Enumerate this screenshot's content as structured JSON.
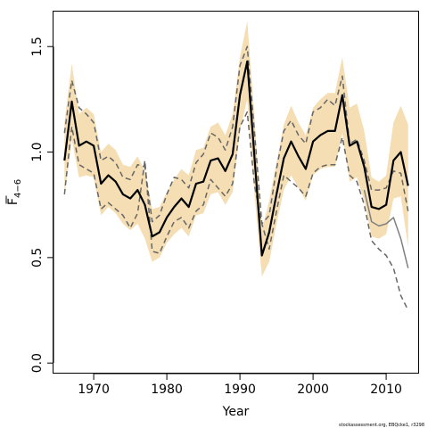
{
  "chart_data": {
    "type": "line",
    "xlabel": "Year",
    "ylabel": {
      "main": "F",
      "subscript": "4−6"
    },
    "xlim": [
      1964.5,
      2014.5
    ],
    "ylim": [
      -0.05,
      1.67
    ],
    "xticks": [
      1970,
      1980,
      1990,
      2000,
      2010
    ],
    "yticks": [
      0.0,
      0.5,
      1.0,
      1.5
    ],
    "ytick_labels": [
      "0.0",
      "0.5",
      "1.0",
      "1.5"
    ],
    "xtick_labels": [
      "1970",
      "1980",
      "1990",
      "2000",
      "2010"
    ],
    "grid": false,
    "colors": {
      "band": "#f5deb3",
      "estimate": "#000000",
      "bounds": "#666666",
      "retro": "#808080"
    },
    "x": [
      1966,
      1967,
      1968,
      1969,
      1970,
      1971,
      1972,
      1973,
      1974,
      1975,
      1976,
      1977,
      1978,
      1979,
      1980,
      1981,
      1982,
      1983,
      1984,
      1985,
      1986,
      1987,
      1988,
      1989,
      1990,
      1991,
      1992,
      1993,
      1994,
      1995,
      1996,
      1997,
      1998,
      1999,
      2000,
      2001,
      2002,
      2003,
      2004,
      2005,
      2006,
      2007,
      2008,
      2009,
      2010,
      2011,
      2012,
      2013
    ],
    "series": [
      {
        "role": "estimate",
        "values": [
          0.96,
          1.24,
          1.03,
          1.05,
          1.03,
          0.85,
          0.89,
          0.86,
          0.8,
          0.78,
          0.82,
          0.75,
          0.6,
          0.62,
          0.69,
          0.74,
          0.78,
          0.74,
          0.85,
          0.86,
          0.96,
          0.97,
          0.91,
          0.99,
          1.27,
          1.43,
          0.97,
          0.51,
          0.62,
          0.8,
          0.97,
          1.05,
          0.98,
          0.92,
          1.05,
          1.08,
          1.1,
          1.1,
          1.27,
          1.03,
          1.05,
          0.93,
          0.74,
          0.73,
          0.75,
          0.96,
          1.0,
          0.84
        ]
      },
      {
        "role": "upper",
        "values": [
          1.14,
          1.42,
          1.18,
          1.21,
          1.18,
          1.0,
          1.04,
          1.01,
          0.94,
          0.93,
          0.98,
          0.91,
          0.73,
          0.74,
          0.81,
          0.87,
          0.92,
          0.89,
          1.01,
          1.02,
          1.12,
          1.14,
          1.08,
          1.18,
          1.45,
          1.62,
          1.16,
          0.63,
          0.77,
          0.95,
          1.13,
          1.22,
          1.14,
          1.08,
          1.21,
          1.25,
          1.28,
          1.28,
          1.45,
          1.21,
          1.23,
          1.1,
          0.88,
          0.86,
          0.89,
          1.14,
          1.22,
          1.13
        ]
      },
      {
        "role": "lower",
        "values": [
          0.79,
          1.06,
          0.88,
          0.89,
          0.88,
          0.7,
          0.74,
          0.71,
          0.66,
          0.63,
          0.66,
          0.59,
          0.48,
          0.5,
          0.57,
          0.61,
          0.64,
          0.6,
          0.7,
          0.71,
          0.8,
          0.81,
          0.75,
          0.81,
          1.1,
          1.25,
          0.8,
          0.41,
          0.48,
          0.66,
          0.82,
          0.89,
          0.83,
          0.77,
          0.89,
          0.92,
          0.93,
          0.93,
          1.09,
          0.86,
          0.88,
          0.77,
          0.6,
          0.59,
          0.61,
          0.78,
          0.79,
          0.55
        ]
      },
      {
        "role": "upper-dashed",
        "values": [
          1.09,
          1.34,
          1.21,
          1.18,
          1.14,
          0.96,
          0.98,
          0.95,
          0.88,
          0.87,
          0.94,
          0.93,
          0.67,
          0.7,
          0.8,
          0.88,
          0.87,
          0.83,
          0.95,
          0.99,
          1.09,
          1.07,
          1.01,
          1.12,
          1.41,
          1.5,
          1.09,
          0.66,
          0.7,
          0.92,
          1.1,
          1.15,
          1.08,
          1.04,
          1.19,
          1.21,
          1.25,
          1.22,
          1.36,
          1.04,
          1.06,
          0.96,
          0.82,
          0.82,
          0.83,
          0.91,
          0.9,
          0.72
        ]
      },
      {
        "role": "lower-dashed",
        "values": [
          0.8,
          1.12,
          0.94,
          0.92,
          0.9,
          0.73,
          0.76,
          0.73,
          0.7,
          0.64,
          0.71,
          0.96,
          0.53,
          0.52,
          0.6,
          0.67,
          0.69,
          0.64,
          0.72,
          0.75,
          0.87,
          0.83,
          0.79,
          0.85,
          1.12,
          1.19,
          0.84,
          0.66,
          0.54,
          0.72,
          0.89,
          0.86,
          0.83,
          0.79,
          0.9,
          0.93,
          0.94,
          0.94,
          1.07,
          0.89,
          0.86,
          0.75,
          0.58,
          0.54,
          0.51,
          0.45,
          0.32,
          0.25
        ]
      },
      {
        "role": "retrospective",
        "values": [
          null,
          null,
          null,
          null,
          null,
          null,
          null,
          null,
          null,
          null,
          null,
          null,
          null,
          null,
          null,
          null,
          null,
          null,
          null,
          null,
          null,
          null,
          null,
          null,
          null,
          null,
          null,
          null,
          null,
          null,
          null,
          null,
          null,
          null,
          null,
          null,
          null,
          null,
          null,
          null,
          null,
          0.82,
          0.67,
          0.65,
          0.66,
          0.69,
          0.59,
          0.45
        ]
      }
    ],
    "credit": "stockassessment.org, EBQcke1, r3298"
  }
}
